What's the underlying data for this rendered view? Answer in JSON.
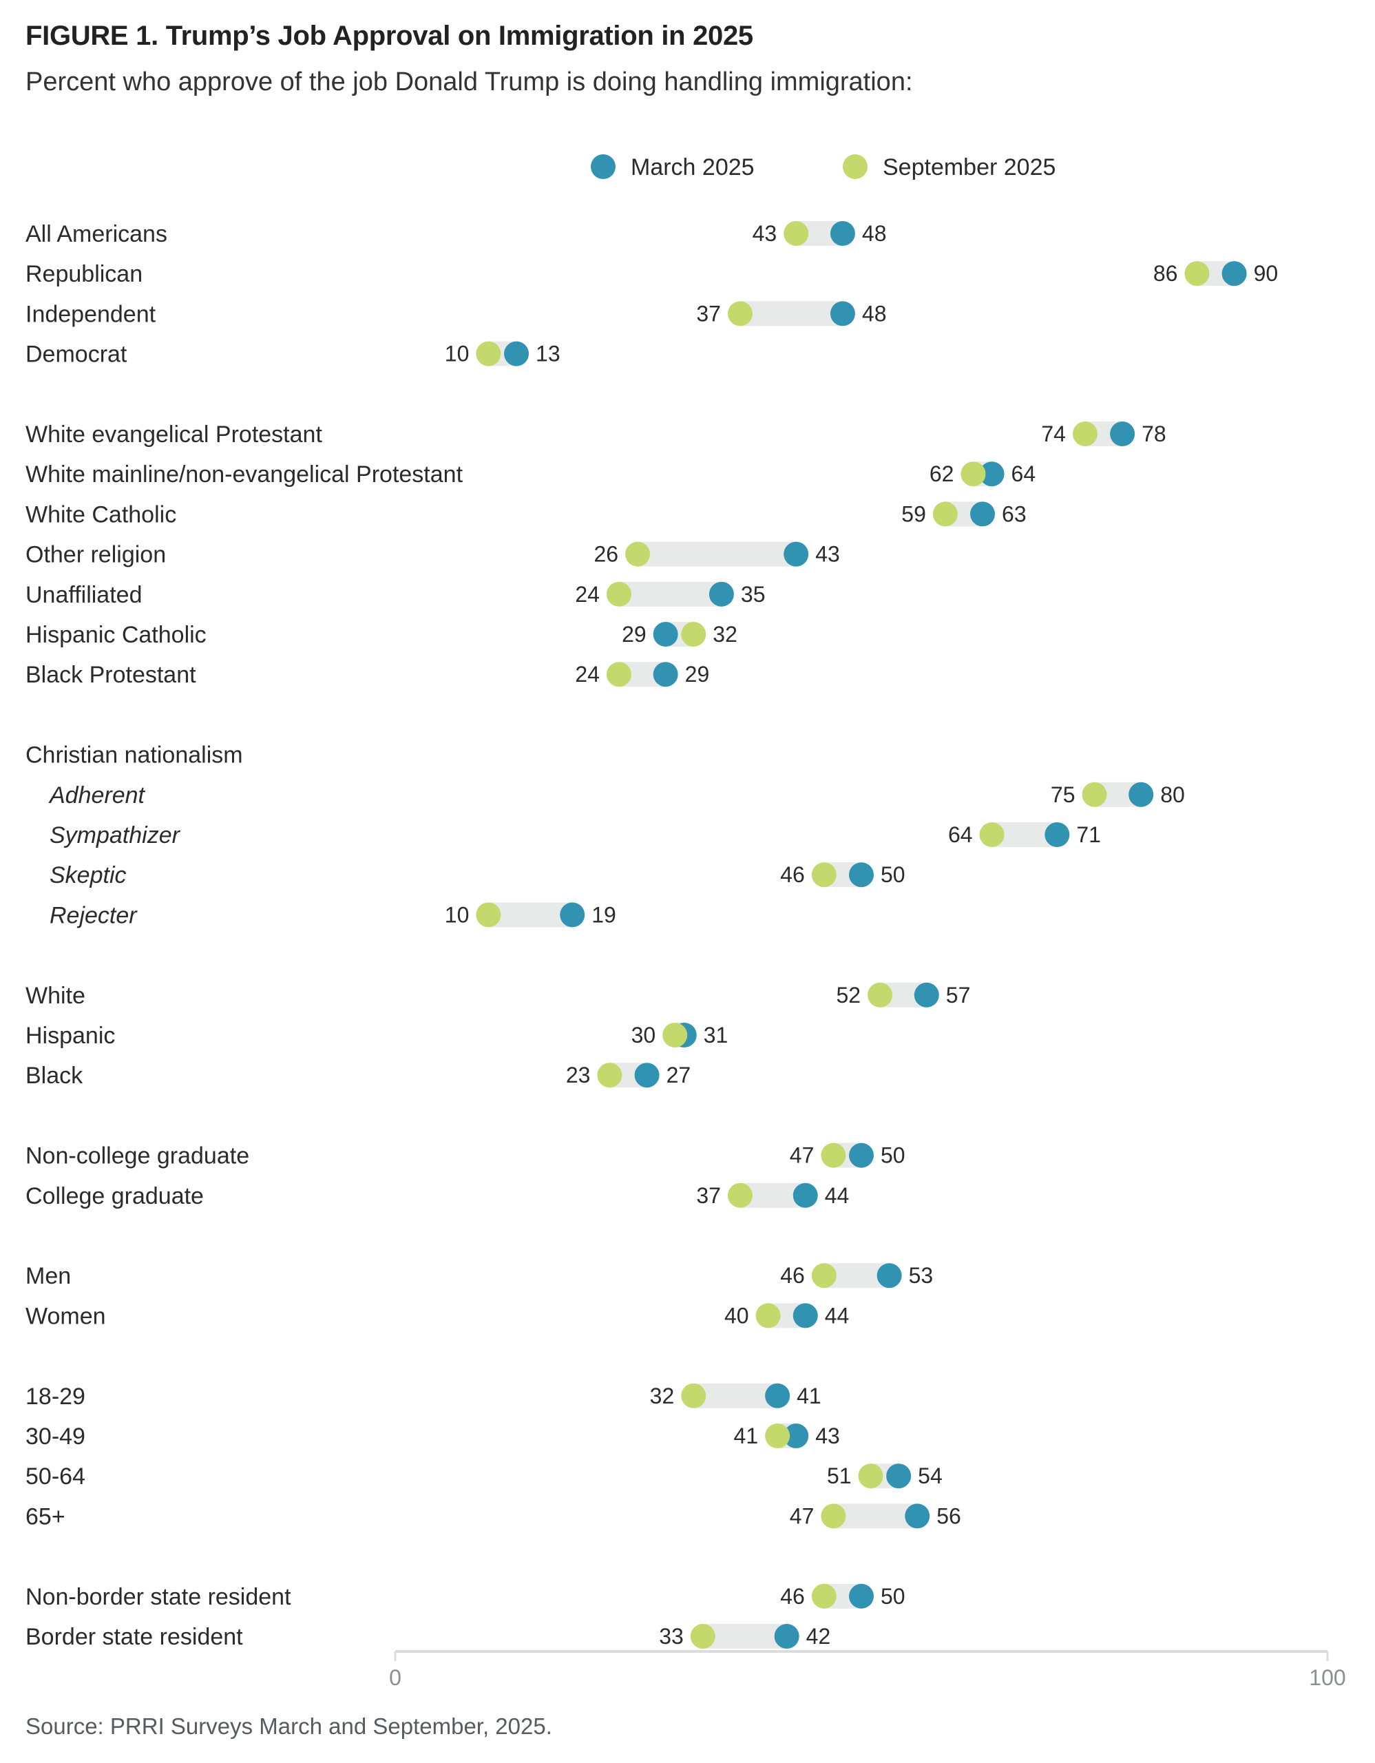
{
  "header": {
    "title": "FIGURE 1.  Trump’s Job Approval on Immigration in 2025",
    "subtitle": "Percent who approve of the job Donald Trump is doing handling immigration:"
  },
  "footer": {
    "source": "Source: PRRI Surveys March and September, 2025."
  },
  "colors": {
    "march": "#3193b1",
    "september": "#c3d96b",
    "connector": "#e8eaea",
    "axis": "#dcdcdc"
  },
  "chart_data": {
    "type": "dumbbell",
    "title": "FIGURE 1.  Trump’s Job Approval on Immigration in 2025",
    "subtitle": "Percent who approve of the job Donald Trump is doing handling immigration:",
    "xlim": [
      0,
      100
    ],
    "x_ticks": [
      "0",
      "100"
    ],
    "legend": {
      "position": "top-center",
      "entries": [
        {
          "key": "march",
          "label": "March 2025"
        },
        {
          "key": "september",
          "label": "September 2025"
        }
      ]
    },
    "rows": [
      {
        "label": "All Americans",
        "march": 48,
        "september": 43,
        "group": 0
      },
      {
        "label": "Republican",
        "march": 90,
        "september": 86,
        "group": 0
      },
      {
        "label": "Independent",
        "march": 48,
        "september": 37,
        "group": 0
      },
      {
        "label": "Democrat",
        "march": 13,
        "september": 10,
        "group": 0
      },
      {
        "label": "White evangelical Protestant",
        "march": 78,
        "september": 74,
        "group": 1
      },
      {
        "label": "White mainline/non-evangelical Protestant",
        "march": 64,
        "september": 62,
        "group": 1
      },
      {
        "label": "White Catholic",
        "march": 63,
        "september": 59,
        "group": 1
      },
      {
        "label": "Other religion",
        "march": 43,
        "september": 26,
        "group": 1
      },
      {
        "label": "Unaffiliated",
        "march": 35,
        "september": 24,
        "group": 1
      },
      {
        "label": "Hispanic Catholic",
        "march": 29,
        "september": 32,
        "group": 1
      },
      {
        "label": "Black Protestant",
        "march": 29,
        "september": 24,
        "group": 1
      },
      {
        "label": "Christian nationalism",
        "header": true,
        "group": 2
      },
      {
        "label": "Adherent",
        "march": 80,
        "september": 75,
        "group": 2,
        "italic": true
      },
      {
        "label": "Sympathizer",
        "march": 71,
        "september": 64,
        "group": 2,
        "italic": true
      },
      {
        "label": "Skeptic",
        "march": 50,
        "september": 46,
        "group": 2,
        "italic": true
      },
      {
        "label": "Rejecter",
        "march": 19,
        "september": 10,
        "group": 2,
        "italic": true
      },
      {
        "label": "White",
        "march": 57,
        "september": 52,
        "group": 3
      },
      {
        "label": "Hispanic",
        "march": 31,
        "september": 30,
        "group": 3
      },
      {
        "label": "Black",
        "march": 27,
        "september": 23,
        "group": 3
      },
      {
        "label": "Non-college graduate",
        "march": 50,
        "september": 47,
        "group": 4
      },
      {
        "label": "College graduate",
        "march": 44,
        "september": 37,
        "group": 4
      },
      {
        "label": "Men",
        "march": 53,
        "september": 46,
        "group": 5
      },
      {
        "label": "Women",
        "march": 44,
        "september": 40,
        "group": 5
      },
      {
        "label": "18-29",
        "march": 41,
        "september": 32,
        "group": 6
      },
      {
        "label": "30-49",
        "march": 43,
        "september": 41,
        "group": 6
      },
      {
        "label": "50-64",
        "march": 54,
        "september": 51,
        "group": 6
      },
      {
        "label": "65+",
        "march": 56,
        "september": 47,
        "group": 6
      },
      {
        "label": "Non-border state resident",
        "march": 50,
        "september": 46,
        "group": 7
      },
      {
        "label": "Border state resident",
        "march": 42,
        "september": 33,
        "group": 7
      }
    ]
  }
}
